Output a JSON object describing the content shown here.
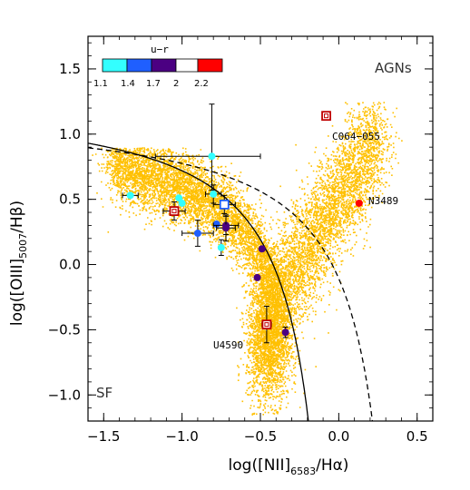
{
  "chart_data": {
    "type": "scatter",
    "title": "",
    "xlabel": "log([NII]",
    "xlabel_sub": "6583",
    "xlabel_tail": "/Hα)",
    "ylabel": "log([OIII]",
    "ylabel_sub": "5007",
    "ylabel_tail": "/Hβ)",
    "xlim": [
      -1.6,
      0.6
    ],
    "ylim": [
      -1.2,
      1.75
    ],
    "x_ticks": [
      -1.5,
      -1.0,
      -0.5,
      0.0,
      0.5
    ],
    "x_tick_labels": [
      "−1.5",
      "−1.0",
      "−0.5",
      "0.0",
      "0.5"
    ],
    "y_ticks": [
      -1.0,
      -0.5,
      0.0,
      0.5,
      1.0,
      1.5
    ],
    "y_tick_labels": [
      "−1.0",
      "−0.5",
      "0.0",
      "0.5",
      "1.0",
      "1.5"
    ],
    "region_labels": [
      "AGNs",
      "SF"
    ],
    "colorbar": {
      "title": "u−r",
      "tick_labels": [
        "1.1",
        "1.4",
        "1.7",
        "2",
        "2.2"
      ],
      "colors": [
        "#33ffff",
        "#1f5fff",
        "#4b0082",
        "#ffffff",
        "#ff0000"
      ]
    },
    "annotations": [
      {
        "text": "C064−055",
        "x": -0.09,
        "y": 0.98
      },
      {
        "text": "N3489",
        "x": 0.17,
        "y": 0.47
      },
      {
        "text": "U4590",
        "x": -0.82,
        "y": -0.6
      }
    ],
    "background_density_color": "#ffc000",
    "curves": [
      {
        "name": "",
        "style": "solid",
        "description": "Kauffmann"
      },
      {
        "name": "",
        "style": "dashed",
        "description": "Kewley"
      }
    ],
    "points": [
      {
        "x": -1.33,
        "y": 0.53,
        "color": "#33ffff",
        "marker": "circle",
        "xerr": 0.05,
        "yerr": 0.0
      },
      {
        "x": -1.02,
        "y": 0.51,
        "color": "#33ffff",
        "marker": "circle",
        "xerr": 0.0,
        "yerr": 0.0
      },
      {
        "x": -1.0,
        "y": 0.47,
        "color": "#33ffff",
        "marker": "circle",
        "xerr": 0.0,
        "yerr": 0.0
      },
      {
        "x": -0.81,
        "y": 0.83,
        "color": "#33ffff",
        "marker": "circle",
        "xerr": [
          0.36,
          0.31
        ],
        "yerr": [
          0.26,
          0.4
        ]
      },
      {
        "x": -0.8,
        "y": 0.54,
        "color": "#33ffff",
        "marker": "circle",
        "xerr": 0.05,
        "yerr": 0.07
      },
      {
        "x": -0.75,
        "y": 0.13,
        "color": "#33ffff",
        "marker": "circle",
        "xerr": 0.0,
        "yerr": 0.06
      },
      {
        "x": -0.78,
        "y": 0.31,
        "color": "#1f5fff",
        "marker": "circle",
        "xerr": 0.0,
        "yerr": 0.0
      },
      {
        "x": -0.9,
        "y": 0.24,
        "color": "#1f5fff",
        "marker": "circle",
        "xerr": 0.1,
        "yerr": 0.1
      },
      {
        "x": -0.73,
        "y": 0.46,
        "color": "#1f5fff",
        "marker": "square",
        "xerr": 0.07,
        "yerr": 0.07
      },
      {
        "x": -0.72,
        "y": 0.3,
        "color": "#4b0082",
        "marker": "circle",
        "xerr": 0.08,
        "yerr": 0.07
      },
      {
        "x": -0.72,
        "y": 0.28,
        "color": "#4b0082",
        "marker": "circle",
        "xerr": 0.06,
        "yerr": 0.1
      },
      {
        "x": -1.05,
        "y": 0.41,
        "color": "#ff8080",
        "marker": "square",
        "xerr": 0.07,
        "yerr": 0.07
      },
      {
        "x": -0.49,
        "y": 0.12,
        "color": "#4b0082",
        "marker": "circle",
        "xerr": 0.0,
        "yerr": 0.0
      },
      {
        "x": -0.52,
        "y": -0.1,
        "color": "#4b0082",
        "marker": "circle",
        "xerr": 0.0,
        "yerr": 0.0
      },
      {
        "x": -0.34,
        "y": -0.52,
        "color": "#4b0082",
        "marker": "circle",
        "xerr": 0.0,
        "yerr": 0.04
      },
      {
        "x": -0.46,
        "y": -0.46,
        "color": "#ff8080",
        "marker": "square",
        "xerr": 0.03,
        "yerr": 0.14
      },
      {
        "x": -0.08,
        "y": 1.14,
        "color": "#ff3030",
        "marker": "square",
        "xerr": 0.0,
        "yerr": 0.0
      },
      {
        "x": 0.13,
        "y": 0.47,
        "color": "#ff0000",
        "marker": "circle",
        "xerr": 0.0,
        "yerr": 0.0
      }
    ]
  }
}
